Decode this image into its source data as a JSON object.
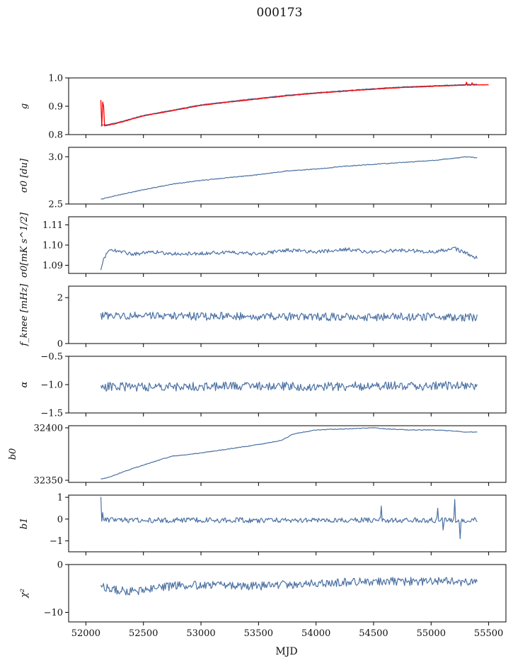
{
  "title": "000173",
  "xlabel": "MJD",
  "x_ticks": [
    52000,
    52500,
    53000,
    53500,
    54000,
    54500,
    55000,
    55500
  ],
  "x_tick_labels": [
    "52000",
    "52500",
    "53000",
    "53500",
    "54000",
    "54500",
    "55000",
    "55500"
  ],
  "colors": {
    "series": "#4c72a4",
    "overlay": "#ff0000",
    "axis": "#000000"
  },
  "chart_data": [
    {
      "type": "line",
      "id": "g",
      "ylabel": "g",
      "xlim": [
        51850,
        55650
      ],
      "ylim": [
        0.8,
        1.0
      ],
      "y_ticks": [
        0.8,
        0.9,
        1.0
      ],
      "y_tick_labels": [
        "0.8",
        "0.9",
        "1.0"
      ],
      "series": [
        {
          "color": "#4c72a4",
          "x": [
            52130,
            52200,
            52300,
            52500,
            52750,
            53000,
            53250,
            53500,
            53750,
            54000,
            54250,
            54500,
            54750,
            55000,
            55250,
            55400
          ],
          "y": [
            0.833,
            0.836,
            0.845,
            0.868,
            0.886,
            0.905,
            0.917,
            0.928,
            0.939,
            0.948,
            0.955,
            0.962,
            0.968,
            0.972,
            0.976,
            0.978
          ],
          "noise": 0.001
        },
        {
          "color": "#ff0000",
          "x": [
            52130,
            52200,
            52300,
            52500,
            52750,
            53000,
            53250,
            53500,
            53750,
            54000,
            54250,
            54500,
            54750,
            55000,
            55250,
            55500
          ],
          "y": [
            0.83,
            0.833,
            0.843,
            0.866,
            0.884,
            0.903,
            0.915,
            0.926,
            0.937,
            0.946,
            0.953,
            0.96,
            0.966,
            0.97,
            0.974,
            0.976
          ],
          "noise": 0.0008,
          "spikes": [
            [
              52130,
              0.922
            ],
            [
              52140,
              0.915
            ],
            [
              52150,
              0.9
            ],
            [
              55300,
              0.985
            ],
            [
              55350,
              0.983
            ]
          ]
        }
      ]
    },
    {
      "type": "line",
      "id": "sigma0-du",
      "ylabel": "σ0 [du]",
      "xlim": [
        51850,
        55650
      ],
      "ylim": [
        2.5,
        3.1
      ],
      "y_ticks": [
        2.5,
        3.0
      ],
      "y_tick_labels": [
        "2.5",
        "3.0"
      ],
      "series": [
        {
          "color": "#4c72a4",
          "x": [
            52130,
            52300,
            52500,
            52750,
            53000,
            53250,
            53500,
            53750,
            54000,
            54250,
            54500,
            54750,
            55000,
            55250,
            55300,
            55400
          ],
          "y": [
            2.55,
            2.6,
            2.65,
            2.71,
            2.75,
            2.78,
            2.81,
            2.85,
            2.87,
            2.9,
            2.92,
            2.94,
            2.96,
            2.99,
            3.0,
            2.99
          ],
          "noise": 0.004
        }
      ]
    },
    {
      "type": "line",
      "id": "sigma0-mk",
      "ylabel": "σ0[mK s^1/2]",
      "xlim": [
        51850,
        55650
      ],
      "ylim": [
        1.086,
        1.114
      ],
      "y_ticks": [
        1.09,
        1.1,
        1.11
      ],
      "y_tick_labels": [
        "1.09",
        "1.10",
        "1.11"
      ],
      "series": [
        {
          "color": "#4c72a4",
          "x": [
            52130,
            52150,
            52200,
            52250,
            52400,
            52600,
            52800,
            53000,
            53250,
            53500,
            53750,
            54000,
            54250,
            54500,
            54750,
            55000,
            55200,
            55300,
            55400
          ],
          "y": [
            1.0885,
            1.093,
            1.0975,
            1.0975,
            1.0955,
            1.0965,
            1.0955,
            1.096,
            1.0965,
            1.0955,
            1.0975,
            1.0965,
            1.098,
            1.0965,
            1.0975,
            1.0965,
            1.0985,
            1.096,
            1.0935
          ],
          "noise": 0.0009
        }
      ]
    },
    {
      "type": "line",
      "id": "fknee",
      "ylabel": "f_knee [mHz]",
      "xlim": [
        51850,
        55650
      ],
      "ylim": [
        0,
        2.5
      ],
      "y_ticks": [
        0,
        2
      ],
      "y_tick_labels": [
        "0",
        "2"
      ],
      "series": [
        {
          "color": "#4c72a4",
          "x": [
            52130,
            55400
          ],
          "y": [
            1.2,
            1.15
          ],
          "noise": 0.18
        }
      ]
    },
    {
      "type": "line",
      "id": "alpha",
      "ylabel": "α",
      "xlim": [
        51850,
        55650
      ],
      "ylim": [
        -1.5,
        -0.5
      ],
      "y_ticks": [
        -1.5,
        -1.0,
        -0.5
      ],
      "y_tick_labels": [
        "−1.5",
        "−1.0",
        "−0.5"
      ],
      "series": [
        {
          "color": "#4c72a4",
          "x": [
            52130,
            55400
          ],
          "y": [
            -1.04,
            -1.02
          ],
          "noise": 0.08
        }
      ]
    },
    {
      "type": "line",
      "id": "b0",
      "ylabel": "b0",
      "xlim": [
        51850,
        55650
      ],
      "ylim": [
        32348,
        32402
      ],
      "y_ticks": [
        32350,
        32400
      ],
      "y_tick_labels": [
        "32350",
        "32400"
      ],
      "series": [
        {
          "color": "#4c72a4",
          "x": [
            52130,
            52200,
            52400,
            52600,
            52750,
            53000,
            53250,
            53500,
            53700,
            53800,
            54000,
            54250,
            54500,
            54600,
            54800,
            55000,
            55200,
            55300,
            55400
          ],
          "y": [
            32351,
            32353,
            32361,
            32368,
            32373,
            32376,
            32380,
            32384,
            32388,
            32394,
            32398,
            32399,
            32400,
            32399,
            32398,
            32398,
            32397,
            32396,
            32396
          ],
          "noise": 0.3
        }
      ]
    },
    {
      "type": "line",
      "id": "b1",
      "ylabel": "b1",
      "xlim": [
        51850,
        55650
      ],
      "ylim": [
        -1.5,
        1.1
      ],
      "y_ticks": [
        -1,
        0,
        1
      ],
      "y_tick_labels": [
        "−1",
        "0",
        "1"
      ],
      "series": [
        {
          "color": "#4c72a4",
          "x": [
            52130,
            55400
          ],
          "y": [
            -0.05,
            -0.05
          ],
          "noise": 0.12,
          "spikes": [
            [
              52130,
              1.02
            ],
            [
              52140,
              0.3
            ],
            [
              54560,
              -1.3
            ],
            [
              54565,
              0.6
            ],
            [
              55200,
              0.9
            ],
            [
              55250,
              -0.9
            ],
            [
              55050,
              0.5
            ],
            [
              55100,
              -0.5
            ]
          ]
        }
      ]
    },
    {
      "type": "line",
      "id": "chi2",
      "ylabel": "χ²",
      "xlim": [
        51850,
        55650
      ],
      "ylim": [
        -12,
        0
      ],
      "y_ticks": [
        -10,
        0
      ],
      "y_tick_labels": [
        "−10",
        "0"
      ],
      "series": [
        {
          "color": "#4c72a4",
          "x": [
            52130,
            52300,
            52500,
            52750,
            53000,
            53500,
            54000,
            54500,
            55000,
            55400
          ],
          "y": [
            -4.5,
            -5.5,
            -5.5,
            -4.5,
            -4.2,
            -4.5,
            -3.8,
            -3.6,
            -3.5,
            -3.8
          ],
          "noise": 0.9
        }
      ]
    }
  ]
}
